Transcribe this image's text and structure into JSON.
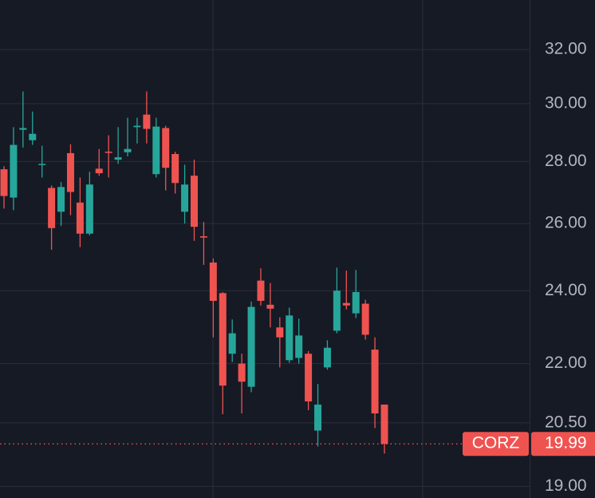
{
  "chart_data": {
    "type": "candlestick",
    "symbol": "CORZ",
    "last_price": 19.99,
    "log_scale": true,
    "grid": true,
    "up_color": "#26a69a",
    "down_color": "#ef5350",
    "categories": [
      null,
      null,
      null,
      null,
      null,
      null,
      null,
      null,
      null,
      null,
      null,
      null,
      null,
      null,
      null,
      null,
      null,
      null,
      null,
      null,
      null,
      null,
      null,
      null,
      null,
      null,
      null,
      null,
      null,
      null,
      null,
      null,
      null,
      null,
      null,
      null,
      null,
      null,
      null,
      null,
      null
    ],
    "open": [
      27.74,
      26.82,
      29.08,
      28.72,
      27.89,
      27.13,
      26.37,
      28.28,
      26.66,
      25.69,
      27.76,
      28.33,
      28.06,
      28.31,
      29.17,
      29.61,
      27.58,
      29.14,
      28.25,
      26.37,
      27.53,
      25.61,
      24.82,
      23.93,
      22.26,
      22.0,
      21.4,
      24.29,
      23.6,
      22.97,
      22.09,
      22.15,
      22.26,
      20.31,
      21.9,
      22.88,
      23.65,
      23.36,
      23.63,
      22.37,
      20.95
    ],
    "high": [
      27.84,
      29.17,
      30.44,
      29.72,
      28.53,
      27.21,
      27.32,
      28.58,
      27.47,
      27.66,
      28.42,
      28.89,
      29.17,
      29.5,
      29.5,
      30.44,
      29.5,
      29.22,
      28.33,
      27.89,
      28.06,
      26.05,
      24.94,
      23.96,
      23.19,
      22.26,
      23.69,
      24.65,
      24.22,
      23.25,
      23.52,
      23.21,
      22.33,
      21.47,
      22.62,
      24.67,
      24.58,
      24.6,
      23.74,
      22.7,
      20.95
    ],
    "low": [
      26.47,
      26.42,
      28.47,
      28.56,
      27.47,
      25.2,
      25.93,
      26.26,
      25.28,
      25.64,
      27.53,
      27.47,
      27.92,
      28.17,
      28.61,
      28.61,
      27.47,
      27.05,
      26.95,
      26.0,
      25.47,
      24.75,
      22.7,
      20.71,
      22.04,
      20.73,
      21.26,
      23.58,
      22.97,
      21.9,
      22.02,
      22.0,
      20.81,
      19.93,
      21.84,
      22.81,
      23.47,
      23.23,
      22.64,
      20.37,
      19.76
    ],
    "close": [
      26.87,
      28.56,
      29.14,
      28.94,
      27.92,
      25.86,
      27.16,
      27.0,
      25.69,
      27.24,
      27.61,
      28.31,
      28.14,
      28.42,
      29.22,
      29.11,
      29.19,
      27.79,
      27.29,
      27.24,
      25.9,
      25.57,
      23.71,
      21.43,
      22.81,
      21.53,
      23.54,
      23.71,
      23.49,
      22.7,
      23.3,
      22.75,
      21.03,
      20.95,
      22.42,
      24.0,
      23.58,
      23.96,
      22.77,
      20.73,
      19.99
    ],
    "ylim": [
      18.74,
      33.95
    ],
    "yticks": [
      {
        "value": 32,
        "label": "32.00"
      },
      {
        "value": 30,
        "label": "30.00"
      },
      {
        "value": 28,
        "label": "28.00"
      },
      {
        "value": 26,
        "label": "26.00"
      },
      {
        "value": 24,
        "label": "24.00"
      },
      {
        "value": 22,
        "label": "22.00"
      },
      {
        "value": 20.5,
        "label": "20.50"
      },
      {
        "value": 19,
        "label": "19.00"
      }
    ]
  }
}
